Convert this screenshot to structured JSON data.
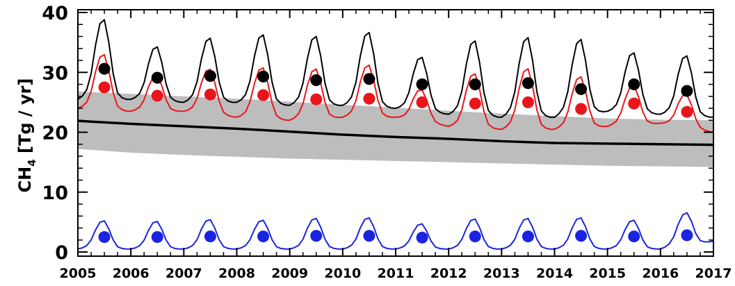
{
  "chart_data": {
    "type": "line",
    "ylabel": "CH",
    "ylabel_sub": "4",
    "ylabel_units": " [Tg / yr]",
    "xlim": [
      2005,
      2017
    ],
    "ylim": [
      0,
      40
    ],
    "xticks": [
      2005,
      2006,
      2007,
      2008,
      2009,
      2010,
      2011,
      2012,
      2013,
      2014,
      2015,
      2016,
      2017
    ],
    "xtick_labels": [
      "2005",
      "2006",
      "2007",
      "2008",
      "2009",
      "2010",
      "2011",
      "2012",
      "2013",
      "2014",
      "2015",
      "2016",
      "2017"
    ],
    "yticks": [
      0,
      10,
      20,
      30,
      40
    ],
    "ytick_labels": [
      "0",
      "10",
      "20",
      "30",
      "40"
    ],
    "grid": false,
    "colors": {
      "black": "#000000",
      "red": "#e8161b",
      "blue": "#1a24e0",
      "band": "#bdbdbd"
    },
    "band": {
      "x": [
        2005.0,
        2006.0,
        2007.0,
        2008.0,
        2009.0,
        2010.0,
        2011.0,
        2012.0,
        2013.0,
        2014.0,
        2015.0,
        2016.0,
        2017.0
      ],
      "upper": [
        26.8,
        26.4,
        26.0,
        25.6,
        25.1,
        24.6,
        24.1,
        23.6,
        23.1,
        22.7,
        22.3,
        22.1,
        22.0
      ],
      "lower": [
        17.2,
        16.6,
        16.2,
        15.9,
        15.6,
        15.4,
        15.2,
        15.0,
        14.8,
        14.6,
        14.4,
        14.3,
        14.2
      ]
    },
    "trend": {
      "x": [
        2005.0,
        2006.0,
        2007.0,
        2008.0,
        2009.0,
        2010.0,
        2011.0,
        2012.0,
        2013.0,
        2014.0,
        2015.0,
        2016.0,
        2017.0
      ],
      "y": [
        21.9,
        21.4,
        21.0,
        20.6,
        20.1,
        19.6,
        19.2,
        18.9,
        18.5,
        18.2,
        18.1,
        18.0,
        17.9
      ]
    },
    "series": [
      {
        "color_key": "black",
        "kind": "seasonal",
        "base": [
          25.5,
          25.5,
          25.0,
          25.0,
          24.5,
          24.5,
          24.0,
          23.0,
          22.5,
          22.5,
          23.5,
          23.0
        ],
        "peak": [
          38.8,
          34.5,
          35.7,
          36.5,
          36.0,
          36.9,
          33.0,
          35.5,
          35.8,
          35.0,
          33.5,
          33.0
        ],
        "end": 22.5
      },
      {
        "color_key": "red",
        "kind": "seasonal",
        "base": [
          24.0,
          23.5,
          23.5,
          22.5,
          22.0,
          22.5,
          22.5,
          21.0,
          20.5,
          20.5,
          21.0,
          21.5
        ],
        "peak": [
          33.2,
          29.5,
          31.0,
          31.0,
          30.3,
          31.2,
          27.8,
          30.0,
          30.6,
          29.0,
          27.5,
          27.0
        ],
        "end": 20.0
      },
      {
        "color_key": "blue",
        "kind": "seasonal",
        "base": [
          0.5,
          0.5,
          0.5,
          0.5,
          0.5,
          0.5,
          0.5,
          0.5,
          0.5,
          0.5,
          0.5,
          0.5
        ],
        "peak": [
          5.2,
          5.1,
          5.4,
          5.3,
          5.6,
          5.7,
          4.7,
          5.5,
          5.6,
          5.7,
          5.3,
          5.9
        ],
        "end": 1.8
      }
    ],
    "points": [
      {
        "color_key": "black",
        "x": [
          2005.5,
          2006.5,
          2007.5,
          2008.5,
          2009.5,
          2010.5,
          2011.5,
          2012.5,
          2013.5,
          2014.5,
          2015.5,
          2016.5
        ],
        "y": [
          30.6,
          29.1,
          29.4,
          29.3,
          28.7,
          28.9,
          28.0,
          28.0,
          28.2,
          27.2,
          28.0,
          26.9
        ]
      },
      {
        "color_key": "red",
        "x": [
          2005.5,
          2006.5,
          2007.5,
          2008.5,
          2009.5,
          2010.5,
          2011.5,
          2012.5,
          2013.5,
          2014.5,
          2015.5,
          2016.5
        ],
        "y": [
          27.5,
          26.1,
          26.3,
          26.2,
          25.5,
          25.6,
          25.0,
          24.8,
          25.0,
          23.9,
          24.8,
          23.4
        ]
      },
      {
        "color_key": "blue",
        "x": [
          2005.5,
          2006.5,
          2007.5,
          2008.5,
          2009.5,
          2010.5,
          2011.5,
          2012.5,
          2013.5,
          2014.5,
          2015.5,
          2016.5
        ],
        "y": [
          2.5,
          2.5,
          2.6,
          2.6,
          2.7,
          2.7,
          2.4,
          2.6,
          2.6,
          2.7,
          2.6,
          2.8
        ]
      }
    ]
  }
}
